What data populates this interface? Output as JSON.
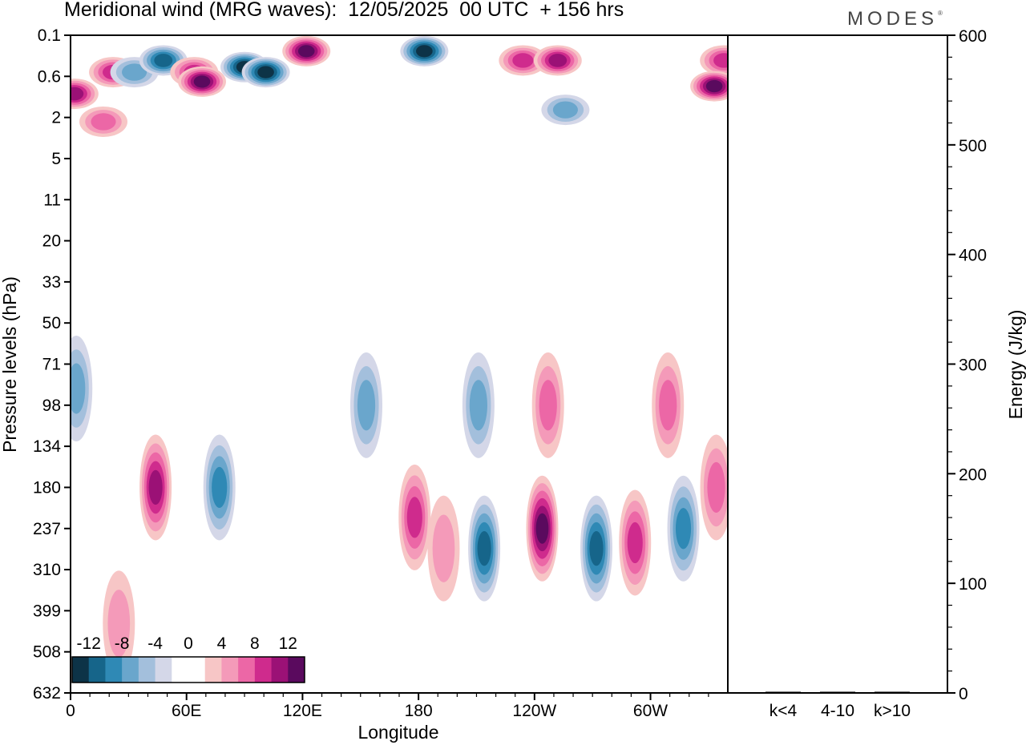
{
  "header": {
    "title": "Meridional wind (MRG waves):  12/05/2025  00 UTC  + 156 hrs",
    "brand": "MODES",
    "brand_mark": "®"
  },
  "chart_data": [
    {
      "type": "heatmap",
      "title": "Meridional wind (MRG waves):  12/05/2025  00 UTC  + 156 hrs",
      "xlabel": "Longitude",
      "ylabel": "Pressure levels (hPa)",
      "x_tick_labels": [
        "0",
        "60E",
        "120E",
        "180",
        "120W",
        "60W"
      ],
      "x_tick_longitudes": [
        0,
        60,
        120,
        180,
        240,
        300
      ],
      "xlim": [
        0,
        340
      ],
      "y_tick_labels": [
        "0.1",
        "0.6",
        "2",
        "5",
        "11",
        "20",
        "33",
        "50",
        "71",
        "98",
        "134",
        "180",
        "237",
        "310",
        "399",
        "508",
        "632"
      ],
      "colorbar": {
        "labels": [
          "-12",
          "-8",
          "-4",
          "0",
          "4",
          "8",
          "12"
        ],
        "levels": [
          -14,
          -12,
          -10,
          -8,
          -6,
          -4,
          -2,
          2,
          4,
          6,
          8,
          10,
          12,
          14
        ],
        "colors": [
          "#0d3347",
          "#16658a",
          "#2f89b5",
          "#6aa6cc",
          "#a3bfdc",
          "#d4d7e8",
          "#ffffff",
          "#ffffff",
          "#f7c6c6",
          "#f49ab9",
          "#ec67a6",
          "#cf2b8d",
          "#9b1176",
          "#5a0a5e"
        ]
      },
      "features": [
        {
          "lon": 2,
          "lev": 1.0,
          "value": 10
        },
        {
          "lon": 22,
          "lev": 0.5,
          "value": 7
        },
        {
          "lon": 33,
          "lev": 0.5,
          "value": -6
        },
        {
          "lon": 48,
          "lev": 0.3,
          "value": -9
        },
        {
          "lon": 64,
          "lev": 0.5,
          "value": 7
        },
        {
          "lon": 68,
          "lev": 0.7,
          "value": 11
        },
        {
          "lon": 90,
          "lev": 0.4,
          "value": -11
        },
        {
          "lon": 101,
          "lev": 0.5,
          "value": -13
        },
        {
          "lon": 122,
          "lev": 0.2,
          "value": 13
        },
        {
          "lon": 183,
          "lev": 0.2,
          "value": -14
        },
        {
          "lon": 234,
          "lev": 0.3,
          "value": 8
        },
        {
          "lon": 252,
          "lev": 0.3,
          "value": 9
        },
        {
          "lon": 338,
          "lev": 0.3,
          "value": 8
        },
        {
          "lon": 333,
          "lev": 0.8,
          "value": 12
        },
        {
          "lon": 256,
          "lev": 1.6,
          "value": -5
        },
        {
          "lon": 17,
          "lev": 2.2,
          "value": 5
        },
        {
          "lon": 44,
          "lev": 180,
          "value": 9
        },
        {
          "lon": 77,
          "lev": 180,
          "value": -8
        },
        {
          "lon": 153,
          "lev": 98,
          "value": -6
        },
        {
          "lon": 178,
          "lev": 220,
          "value": 7
        },
        {
          "lon": 193,
          "lev": 270,
          "value": 4
        },
        {
          "lon": 211,
          "lev": 98,
          "value": -6
        },
        {
          "lon": 214,
          "lev": 270,
          "value": -9
        },
        {
          "lon": 247,
          "lev": 98,
          "value": 6
        },
        {
          "lon": 244,
          "lev": 237,
          "value": 12
        },
        {
          "lon": 272,
          "lev": 270,
          "value": -10
        },
        {
          "lon": 292,
          "lev": 260,
          "value": 8
        },
        {
          "lon": 317,
          "lev": 237,
          "value": -8
        },
        {
          "lon": 309,
          "lev": 98,
          "value": 5
        },
        {
          "lon": 334,
          "lev": 180,
          "value": 6
        },
        {
          "lon": 3,
          "lev": 86,
          "value": -5
        },
        {
          "lon": 25,
          "lev": 430,
          "value": 4
        }
      ]
    },
    {
      "type": "bar",
      "ylabel": "Energy (J/kg)",
      "ylim": [
        0,
        600
      ],
      "y_tick_labels": [
        "0",
        "100",
        "200",
        "300",
        "400",
        "500",
        "600"
      ],
      "categories": [
        "k<4",
        "4-10",
        "k>10"
      ],
      "values": [
        0,
        1,
        0
      ]
    }
  ]
}
